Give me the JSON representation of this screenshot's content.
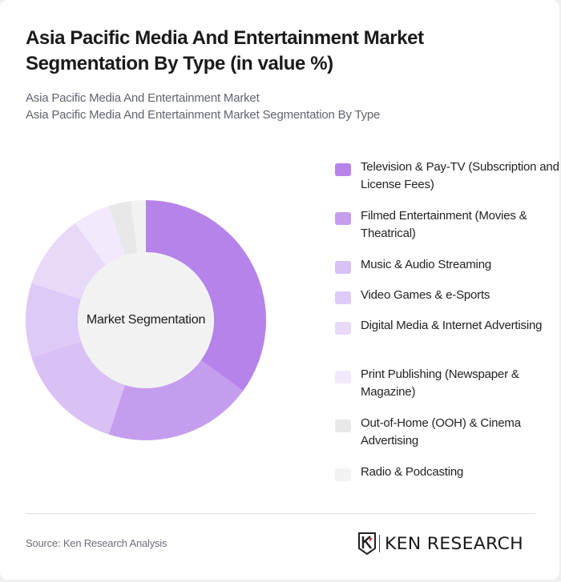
{
  "header": {
    "title": "Asia Pacific Media And Entertainment Market Segmentation By Type (in value %)",
    "subtitle_line1": "Asia Pacific Media And Entertainment Market",
    "subtitle_line2": "Asia Pacific Media And Entertainment Market Segmentation By Type"
  },
  "chart": {
    "center_label": "Market Segmentation"
  },
  "legend": {
    "items": [
      {
        "label": "Television & Pay-TV (Subscription and License Fees)",
        "color": "#B583EA"
      },
      {
        "label": "Filmed Entertainment (Movies & Theatrical)",
        "color": "#C59DEE"
      },
      {
        "label": "Music & Audio Streaming",
        "color": "#D9C0F5"
      },
      {
        "label": "Video Games & e-Sports",
        "color": "#DECAF6"
      },
      {
        "label": "Digital Media & Internet Advertising",
        "color": "#E9D9F9"
      },
      {
        "label": "Print Publishing (Newspaper & Magazine)",
        "color": "#F2EAFC"
      },
      {
        "label": "Out-of-Home (OOH) & Cinema Advertising",
        "color": "#E8E8E8"
      },
      {
        "label": "Radio & Podcasting",
        "color": "#F2F2F2"
      }
    ]
  },
  "footer": {
    "source": "Source: Ken Research Analysis",
    "logo_text": "KEN RESEARCH"
  },
  "chart_data": {
    "type": "pie",
    "title": "Asia Pacific Media And Entertainment Market Segmentation By Type (in value %)",
    "subtitle": "Asia Pacific Media And Entertainment Market Segmentation By Type",
    "center_label": "Market Segmentation",
    "donut": true,
    "categories": [
      "Television & Pay-TV (Subscription and License Fees)",
      "Filmed Entertainment (Movies & Theatrical)",
      "Music & Audio Streaming",
      "Video Games & e-Sports",
      "Digital Media & Internet Advertising",
      "Print Publishing (Newspaper & Magazine)",
      "Out-of-Home (OOH) & Cinema Advertising",
      "Radio & Podcasting"
    ],
    "values": [
      35,
      20,
      15,
      10,
      10,
      5,
      3,
      2
    ],
    "colors": [
      "#B583EA",
      "#C59DEE",
      "#D9C0F5",
      "#DECAF6",
      "#E9D9F9",
      "#F2EAFC",
      "#E8E8E8",
      "#F2F2F2"
    ],
    "unit": "%",
    "legend_position": "right"
  }
}
